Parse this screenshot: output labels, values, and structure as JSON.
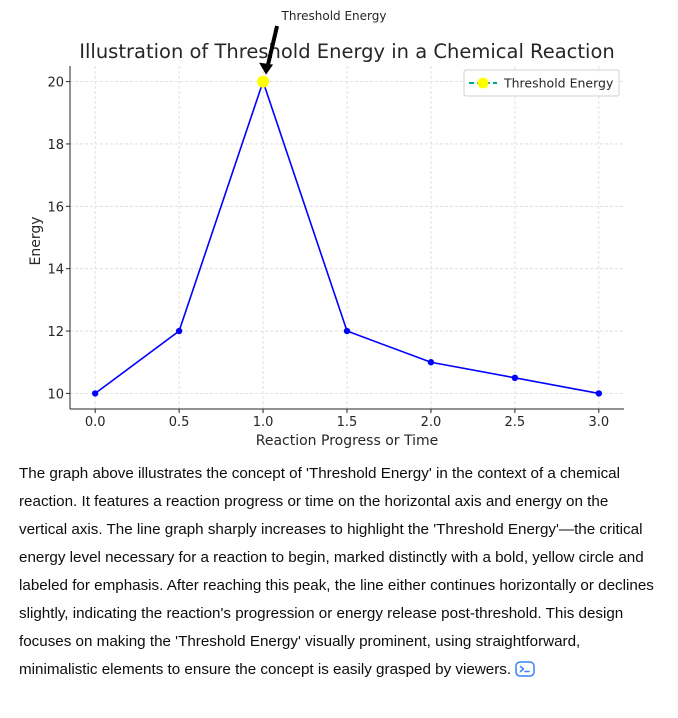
{
  "chart_data": {
    "type": "line",
    "title": "Illustration of Threshold Energy in a Chemical Reaction",
    "xlabel": "Reaction Progress or Time",
    "ylabel": "Energy",
    "x": [
      0.0,
      0.5,
      1.0,
      1.5,
      2.0,
      2.5,
      3.0
    ],
    "x_tick_labels": [
      "0.0",
      "0.5",
      "1.0",
      "1.5",
      "2.0",
      "2.5",
      "3.0"
    ],
    "y_ticks": [
      10,
      12,
      14,
      16,
      18,
      20
    ],
    "xlim": [
      -0.15,
      3.15
    ],
    "ylim": [
      9.5,
      20.5
    ],
    "grid": true,
    "series": [
      {
        "name": "Energy",
        "values": [
          10,
          12,
          20,
          12,
          11,
          10.5,
          10
        ],
        "color": "#0000ff"
      }
    ],
    "highlight": {
      "name": "Threshold Energy",
      "x": 1.0,
      "y": 20,
      "color": "#ffff00"
    },
    "annotation": {
      "text": "Threshold Energy",
      "target_x": 1.0,
      "target_y": 20
    },
    "legend": {
      "entries": [
        "Threshold Energy"
      ],
      "placement": "top-right"
    }
  },
  "description": {
    "text": "The graph above illustrates the concept of 'Threshold Energy' in the context of a chemical reaction. It features a reaction progress or time on the horizontal axis and energy on the vertical axis. The line graph sharply increases to highlight the 'Threshold Energy'—the critical energy level necessary for a reaction to begin, marked distinctly with a bold, yellow circle and labeled for emphasis. After reaching this peak, the line either continues horizontally or declines slightly, indicating the reaction's progression or energy release post-threshold. This design focuses on making the 'Threshold Energy' visually prominent, using straightforward, minimalistic elements to ensure the concept is easily grasped by viewers."
  }
}
